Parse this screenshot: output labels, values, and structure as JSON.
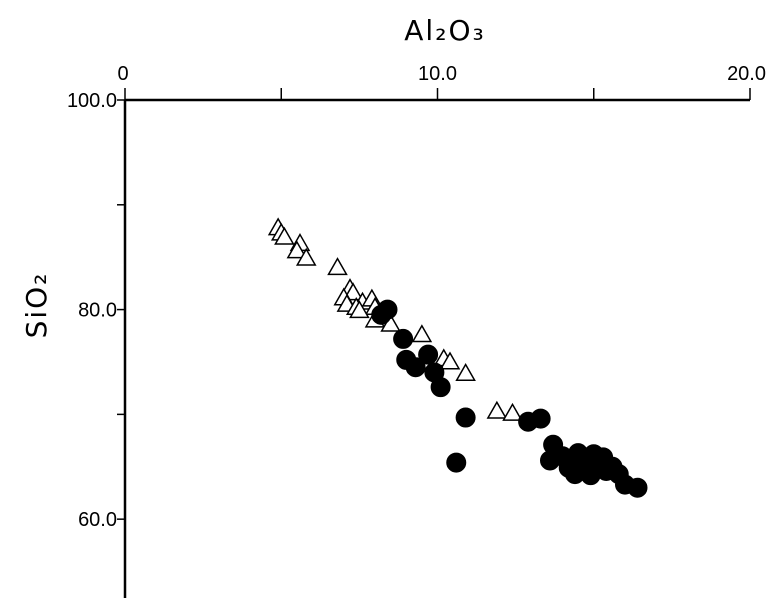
{
  "chart_data": {
    "type": "scatter",
    "title": "",
    "xlabel": "Al₂O₃",
    "ylabel": "SiO₂",
    "xlim": [
      0,
      20
    ],
    "ylim": [
      52,
      100
    ],
    "x_ticks": [
      0,
      5,
      10,
      15,
      20
    ],
    "x_tick_labels": [
      "0",
      "",
      "10.0",
      "",
      "20.0"
    ],
    "y_ticks": [
      100,
      90,
      80,
      70,
      60
    ],
    "y_tick_labels": [
      "100.0",
      "",
      "80.0",
      "",
      "60.0"
    ],
    "x_axis_position": "top",
    "grid": false,
    "series": [
      {
        "marker": "open-triangle",
        "color": "#000000",
        "points": [
          [
            4.9,
            87.8
          ],
          [
            5.0,
            87.3
          ],
          [
            5.1,
            86.9
          ],
          [
            5.6,
            86.3
          ],
          [
            5.5,
            85.6
          ],
          [
            5.8,
            84.9
          ],
          [
            6.8,
            84.0
          ],
          [
            7.2,
            82.0
          ],
          [
            7.3,
            81.6
          ],
          [
            7.0,
            81.1
          ],
          [
            7.6,
            80.7
          ],
          [
            7.1,
            80.5
          ],
          [
            7.4,
            80.2
          ],
          [
            7.9,
            81.0
          ],
          [
            8.0,
            80.2
          ],
          [
            7.5,
            79.9
          ],
          [
            8.2,
            79.4
          ],
          [
            8.0,
            79.0
          ],
          [
            8.5,
            78.6
          ],
          [
            9.5,
            77.6
          ],
          [
            10.2,
            75.3
          ],
          [
            10.4,
            75.0
          ],
          [
            10.9,
            73.9
          ],
          [
            11.9,
            70.3
          ],
          [
            12.4,
            70.1
          ]
        ]
      },
      {
        "marker": "filled-circle",
        "color": "#000000",
        "points": [
          [
            8.4,
            80.0
          ],
          [
            8.2,
            79.5
          ],
          [
            8.9,
            77.2
          ],
          [
            9.0,
            75.2
          ],
          [
            9.3,
            74.5
          ],
          [
            9.7,
            75.7
          ],
          [
            9.9,
            74.0
          ],
          [
            10.1,
            72.6
          ],
          [
            10.9,
            69.7
          ],
          [
            10.6,
            65.4
          ],
          [
            12.9,
            69.3
          ],
          [
            13.3,
            69.6
          ],
          [
            13.7,
            67.1
          ],
          [
            13.6,
            65.6
          ],
          [
            14.0,
            66.0
          ],
          [
            14.2,
            64.9
          ],
          [
            14.4,
            64.3
          ],
          [
            14.5,
            66.3
          ],
          [
            14.6,
            65.5
          ],
          [
            14.8,
            64.8
          ],
          [
            15.0,
            66.2
          ],
          [
            15.1,
            65.6
          ],
          [
            15.3,
            65.9
          ],
          [
            15.4,
            64.6
          ],
          [
            15.6,
            65.0
          ],
          [
            15.8,
            64.3
          ],
          [
            16.0,
            63.3
          ],
          [
            16.4,
            63.0
          ],
          [
            14.9,
            64.2
          ],
          [
            15.2,
            65.0
          ]
        ]
      }
    ]
  }
}
